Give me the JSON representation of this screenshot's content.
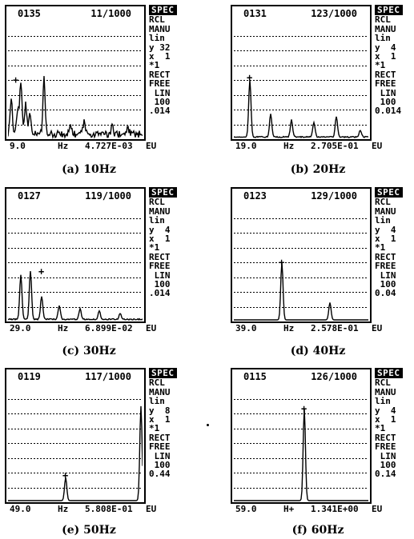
{
  "panels": [
    {
      "id": "a",
      "header": {
        "record": "0135",
        "averages": "11/1000"
      },
      "side": {
        "spec": "SPEC",
        "rcl": "RCL",
        "manu": "MANU",
        "lin": "lin",
        "y": "y 32",
        "x": "x  1",
        "mult": "*1",
        "rect": "RECT",
        "free": "FREE",
        "lin2": " LIN",
        "n100": " 100",
        "scale": ".014"
      },
      "footer": {
        "freq": "9.0",
        "unit": "Hz",
        "value": "4.727E-03",
        "eu": "EU"
      },
      "caption": "(a) 10Hz",
      "spectrum": {
        "peaks": [
          [
            4,
            0.32
          ],
          [
            12,
            0.22
          ],
          [
            16,
            0.45
          ],
          [
            22,
            0.26
          ],
          [
            27,
            0.18
          ],
          [
            45,
            0.48
          ],
          [
            78,
            0.08
          ],
          [
            95,
            0.1
          ],
          [
            130,
            0.06
          ],
          [
            150,
            0.05
          ]
        ],
        "marker": [
          10,
          0.5
        ],
        "noise": 0.06
      }
    },
    {
      "id": "b",
      "header": {
        "record": "0131",
        "averages": "123/1000"
      },
      "side": {
        "spec": "SPEC",
        "rcl": "RCL",
        "manu": "MANU",
        "lin": "lin",
        "y": "y  4",
        "x": "x  1",
        "mult": "*1",
        "rect": "RECT",
        "free": "FREE",
        "lin2": " LIN",
        "n100": " 100",
        "scale": "0.014"
      },
      "footer": {
        "freq": "19.0",
        "unit": "Hz",
        "value": "2.705E-01",
        "eu": "EU"
      },
      "caption": "(b) 20Hz",
      "spectrum": {
        "peaks": [
          [
            20,
            0.5
          ],
          [
            46,
            0.2
          ],
          [
            72,
            0.15
          ],
          [
            100,
            0.13
          ],
          [
            128,
            0.18
          ],
          [
            158,
            0.06
          ]
        ],
        "marker": [
          20,
          0.52
        ],
        "noise": 0.01
      }
    },
    {
      "id": "c",
      "header": {
        "record": "0127",
        "averages": "119/1000"
      },
      "side": {
        "spec": "SPEC",
        "rcl": "RCL",
        "manu": "MANU",
        "lin": "lin",
        "y": "y  4",
        "x": "x  1",
        "mult": "*1",
        "rect": "RECT",
        "free": "FREE",
        "lin2": " LIN",
        "n100": " 100",
        "scale": ".014"
      },
      "footer": {
        "freq": "29.0",
        "unit": "Hz",
        "value": "6.899E-02",
        "eu": "EU"
      },
      "caption": "(c) 30Hz",
      "spectrum": {
        "peaks": [
          [
            16,
            0.39
          ],
          [
            28,
            0.42
          ],
          [
            42,
            0.2
          ],
          [
            64,
            0.12
          ],
          [
            90,
            0.09
          ],
          [
            114,
            0.07
          ],
          [
            140,
            0.05
          ]
        ],
        "marker": [
          42,
          0.42
        ],
        "noise": 0.01
      }
    },
    {
      "id": "d",
      "header": {
        "record": "0123",
        "averages": "129/1000"
      },
      "side": {
        "spec": "SPEC",
        "rcl": "RCL",
        "manu": "MANU",
        "lin": "lin",
        "y": "y  4",
        "x": "x  1",
        "mult": "*1",
        "rect": "RECT",
        "free": "FREE",
        "lin2": " LIN",
        "n100": " 100",
        "scale": "0.04"
      },
      "footer": {
        "freq": "39.0",
        "unit": "Hz",
        "value": "2.578E-01",
        "eu": "EU"
      },
      "caption": "(d) 40Hz",
      "spectrum": {
        "peaks": [
          [
            60,
            0.5
          ],
          [
            120,
            0.15
          ]
        ],
        "marker": [
          60,
          0.5
        ],
        "noise": 0.0
      }
    },
    {
      "id": "e",
      "header": {
        "record": "0119",
        "averages": "117/1000"
      },
      "side": {
        "spec": "SPEC",
        "rcl": "RCL",
        "manu": "MANU",
        "lin": "lin",
        "y": "y  8",
        "x": "x  1",
        "mult": "*1",
        "rect": "RECT",
        "free": "FREE",
        "lin2": " LIN",
        "n100": " 100",
        "scale": "0.44"
      },
      "footer": {
        "freq": "49.0",
        "unit": "Hz",
        "value": "5.808E-01",
        "eu": "EU"
      },
      "caption": "(e) 50Hz",
      "spectrum": {
        "peaks": [
          [
            72,
            0.2
          ],
          [
            166,
            0.82
          ]
        ],
        "marker": [
          72,
          0.22
        ],
        "noise": 0.0
      }
    },
    {
      "id": "f",
      "header": {
        "record": "0115",
        "averages": "126/1000"
      },
      "side": {
        "spec": "SPEC",
        "rcl": "RCL",
        "manu": "MANU",
        "lin": "lin",
        "y": "y  4",
        "x": "x  1",
        "mult": "*1",
        "rect": "RECT",
        "free": "FREE",
        "lin2": " LIN",
        "n100": " 100",
        "scale": "0.14"
      },
      "footer": {
        "freq": "59.0",
        "unit": "H+",
        "value": "1.341E+00",
        "eu": "EU"
      },
      "caption": "(f) 60Hz",
      "spectrum": {
        "peaks": [
          [
            88,
            0.8
          ]
        ],
        "marker": [
          88,
          0.8
        ],
        "noise": 0.0
      }
    }
  ]
}
